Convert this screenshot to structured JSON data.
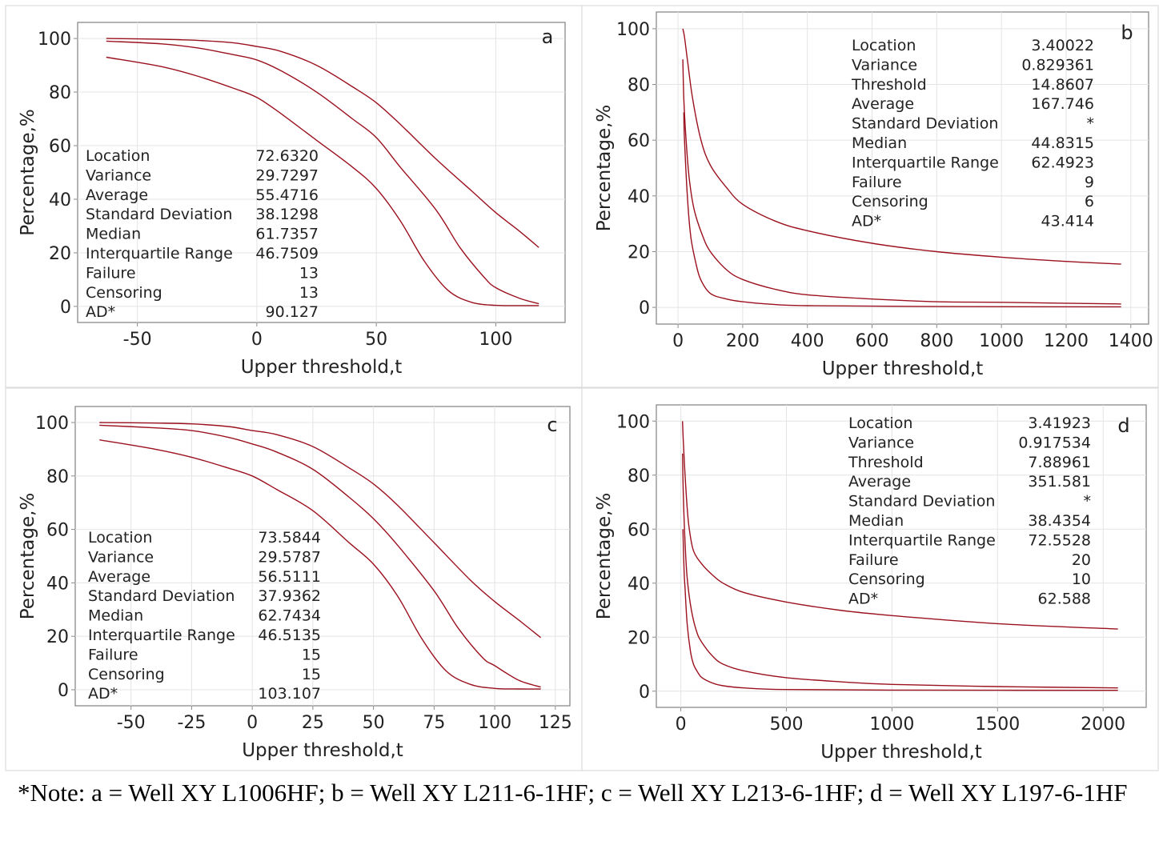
{
  "chart_data": [
    {
      "panel": "a",
      "type": "line",
      "xlabel": "Upper threshold,t",
      "ylabel": "Percentage,%",
      "xlim": [
        -75,
        129
      ],
      "ylim": [
        -6,
        106
      ],
      "xticks": [
        -50,
        0,
        50,
        100
      ],
      "yticks": [
        0,
        20,
        40,
        60,
        80,
        100
      ],
      "grid": true,
      "line_color": "#9b111e",
      "series": [
        {
          "x": [
            -63,
            -40,
            -25,
            -10,
            0,
            10,
            25,
            40,
            50,
            60,
            75,
            90,
            100,
            110,
            118
          ],
          "y": [
            100,
            99.7,
            99.3,
            98.4,
            97,
            95.2,
            90,
            82,
            76,
            68,
            55,
            43,
            35,
            28,
            22
          ]
        },
        {
          "x": [
            -63,
            -40,
            -25,
            -10,
            0,
            10,
            25,
            40,
            50,
            60,
            75,
            85,
            95,
            100,
            110,
            118
          ],
          "y": [
            99,
            98,
            96.5,
            94,
            92,
            88,
            80,
            70,
            63,
            52,
            36,
            22,
            11,
            7,
            3,
            1
          ]
        },
        {
          "x": [
            -63,
            -40,
            -25,
            -10,
            0,
            10,
            25,
            40,
            50,
            60,
            70,
            80,
            90,
            100,
            110,
            118
          ],
          "y": [
            93,
            89.5,
            86,
            81.5,
            78,
            72,
            62,
            52,
            44,
            32,
            17,
            6,
            1.5,
            0.4,
            0.3,
            0.3
          ]
        }
      ],
      "stats": [
        {
          "label": "Location",
          "value": "72.6320"
        },
        {
          "label": "Variance",
          "value": "29.7297"
        },
        {
          "label": "Average",
          "value": "55.4716"
        },
        {
          "label": "Standard Deviation",
          "value": "38.1298"
        },
        {
          "label": "Median",
          "value": "61.7357"
        },
        {
          "label": "Interquartile Range",
          "value": "46.7509"
        },
        {
          "label": "Failure",
          "value": "13"
        },
        {
          "label": "Censoring",
          "value": "13"
        },
        {
          "label": "AD*",
          "value": "90.127"
        }
      ]
    },
    {
      "panel": "b",
      "type": "line",
      "xlabel": "Upper threshold,t",
      "ylabel": "Percentage,%",
      "xlim": [
        -67,
        1455
      ],
      "ylim": [
        -6,
        106
      ],
      "xticks": [
        0,
        200,
        400,
        600,
        800,
        1000,
        1200,
        1400
      ],
      "yticks": [
        0,
        20,
        40,
        60,
        80,
        100
      ],
      "grid": true,
      "line_color": "#9b111e",
      "series": [
        {
          "x": [
            15,
            20,
            30,
            45,
            71,
            100,
            150,
            200,
            300,
            400,
            600,
            800,
            1000,
            1200,
            1370
          ],
          "y": [
            100,
            97,
            88,
            75,
            60,
            51,
            43,
            37,
            31,
            27.5,
            23,
            20,
            18,
            16.5,
            15.5
          ]
        },
        {
          "x": [
            15,
            18,
            25,
            35,
            50,
            75,
            100,
            150,
            200,
            300,
            400,
            600,
            800,
            1000,
            1370
          ],
          "y": [
            89,
            75,
            60,
            46,
            35,
            26,
            20,
            13.5,
            10,
            6.5,
            4.5,
            3,
            2,
            1.8,
            1.2
          ]
        },
        {
          "x": [
            18,
            20,
            30,
            40,
            55,
            70,
            100,
            150,
            200,
            300,
            400,
            800,
            1370
          ],
          "y": [
            70,
            60,
            38,
            25,
            16,
            10,
            5,
            3,
            2,
            1,
            0.6,
            0.3,
            0.2
          ]
        }
      ],
      "stats": [
        {
          "label": "Location",
          "value": "3.40022"
        },
        {
          "label": "Variance",
          "value": "0.829361"
        },
        {
          "label": "Threshold",
          "value": "14.8607"
        },
        {
          "label": "Average",
          "value": "167.746"
        },
        {
          "label": "Standard Deviation",
          "value": "*"
        },
        {
          "label": "Median",
          "value": "44.8315"
        },
        {
          "label": "Interquartile Range",
          "value": "62.4923"
        },
        {
          "label": "Failure",
          "value": "9"
        },
        {
          "label": "Censoring",
          "value": "6"
        },
        {
          "label": "AD*",
          "value": "43.414"
        }
      ]
    },
    {
      "panel": "c",
      "type": "line",
      "xlabel": "Upper threshold,t",
      "ylabel": "Percentage,%",
      "xlim": [
        -73,
        131
      ],
      "ylim": [
        -6,
        106
      ],
      "xticks": [
        -50,
        -25,
        0,
        25,
        50,
        75,
        100,
        125
      ],
      "yticks": [
        0,
        20,
        40,
        60,
        80,
        100
      ],
      "grid": true,
      "line_color": "#9b111e",
      "series": [
        {
          "x": [
            -63,
            -40,
            -25,
            -10,
            0,
            10,
            25,
            40,
            50,
            60,
            75,
            90,
            100,
            110,
            119
          ],
          "y": [
            100,
            99.8,
            99.5,
            98.5,
            97,
            95.5,
            91,
            83,
            77,
            69,
            55,
            41,
            33,
            26,
            19.5
          ]
        },
        {
          "x": [
            -63,
            -40,
            -25,
            -10,
            0,
            10,
            25,
            40,
            50,
            60,
            75,
            85,
            95,
            100,
            110,
            119
          ],
          "y": [
            99,
            98,
            97,
            94.5,
            92,
            89,
            82.5,
            72,
            64,
            54,
            37,
            23,
            12,
            9,
            3.5,
            1
          ]
        },
        {
          "x": [
            -63,
            -40,
            -25,
            -10,
            0,
            10,
            25,
            40,
            50,
            60,
            70,
            80,
            90,
            100,
            110,
            119
          ],
          "y": [
            93.5,
            90,
            87,
            83,
            80,
            75,
            67,
            55,
            47,
            35,
            19,
            7,
            2,
            0.5,
            0.3,
            0.3
          ]
        }
      ],
      "stats": [
        {
          "label": "Location",
          "value": "73.5844"
        },
        {
          "label": "Variance",
          "value": "29.5787"
        },
        {
          "label": "Average",
          "value": "56.5111"
        },
        {
          "label": "Standard Deviation",
          "value": "37.9362"
        },
        {
          "label": "Median",
          "value": "62.7434"
        },
        {
          "label": "Interquartile Range",
          "value": "46.5135"
        },
        {
          "label": "Failure",
          "value": "15"
        },
        {
          "label": "Censoring",
          "value": "15"
        },
        {
          "label": "AD*",
          "value": "103.107"
        }
      ]
    },
    {
      "panel": "d",
      "type": "line",
      "xlabel": "Upper threshold,t",
      "ylabel": "Percentage,%",
      "xlim": [
        -116,
        2204
      ],
      "ylim": [
        -6,
        106
      ],
      "xticks": [
        0,
        500,
        1000,
        1500,
        2000
      ],
      "yticks": [
        0,
        20,
        40,
        60,
        80,
        100
      ],
      "grid": true,
      "line_color": "#9b111e",
      "series": [
        {
          "x": [
            8,
            12,
            20,
            30,
            40,
            60,
            100,
            150,
            200,
            300,
            500,
            750,
            1000,
            1500,
            2070
          ],
          "y": [
            100,
            92,
            80,
            68,
            60,
            52,
            47,
            43,
            40,
            36.5,
            33,
            30,
            28,
            25,
            23
          ]
        },
        {
          "x": [
            8,
            12,
            20,
            30,
            50,
            75,
            100,
            150,
            200,
            300,
            500,
            750,
            1000,
            1500,
            2070
          ],
          "y": [
            88,
            72,
            55,
            42,
            30,
            22,
            18,
            13,
            10,
            7.5,
            5,
            3.5,
            2.5,
            1.7,
            1.2
          ]
        },
        {
          "x": [
            10,
            15,
            20,
            30,
            45,
            60,
            80,
            100,
            150,
            200,
            300,
            500,
            1000,
            2070
          ],
          "y": [
            60,
            45,
            38,
            25,
            15,
            10,
            7,
            5,
            3,
            2,
            1.2,
            0.6,
            0.4,
            0.3
          ]
        }
      ],
      "stats": [
        {
          "label": "Location",
          "value": "3.41923"
        },
        {
          "label": "Variance",
          "value": "0.917534"
        },
        {
          "label": "Threshold",
          "value": "7.88961"
        },
        {
          "label": "Average",
          "value": "351.581"
        },
        {
          "label": "Standard Deviation",
          "value": "*"
        },
        {
          "label": "Median",
          "value": "38.4354"
        },
        {
          "label": "Interquartile Range",
          "value": "72.5528"
        },
        {
          "label": "Failure",
          "value": "20"
        },
        {
          "label": "Censoring",
          "value": "10"
        },
        {
          "label": "AD*",
          "value": "62.588"
        }
      ]
    }
  ],
  "note": "*Note: a = Well XY L1006HF; b = Well XY L211-6-1HF; c = Well XY L213-6-1HF; d = Well XY L197-6-1HF"
}
